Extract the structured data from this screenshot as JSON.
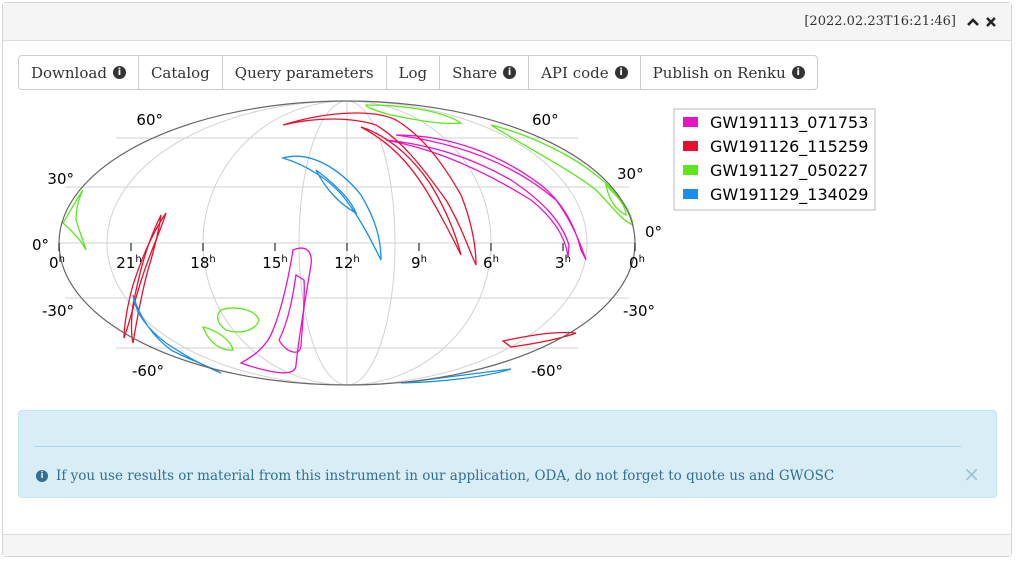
{
  "header": {
    "timestamp": "[2022.02.23T16:21:46]",
    "collapse_icon": "chevron-up-icon",
    "close_icon": "close-icon"
  },
  "toolbar": {
    "buttons": [
      {
        "label": "Download",
        "info": true
      },
      {
        "label": "Catalog",
        "info": false
      },
      {
        "label": "Query parameters",
        "info": false
      },
      {
        "label": "Log",
        "info": false
      },
      {
        "label": "Share",
        "info": true
      },
      {
        "label": "API code",
        "info": true
      },
      {
        "label": "Publish on Renku",
        "info": true
      }
    ]
  },
  "plot": {
    "projection": "mollweide",
    "ra_labels": [
      "0h",
      "21h",
      "18h",
      "15h",
      "12h",
      "9h",
      "6h",
      "3h",
      "0h"
    ],
    "dec_labels_left": [
      "60°",
      "30°",
      "0°",
      "-30°",
      "-60°"
    ],
    "dec_labels_right": [
      "60°",
      "30°",
      "0°",
      "-30°",
      "-60°"
    ],
    "legend": [
      {
        "name": "GW191113_071753",
        "color": "#e815c7"
      },
      {
        "name": "GW191126_115259",
        "color": "#e8102e"
      },
      {
        "name": "GW191127_050227",
        "color": "#5ce81a"
      },
      {
        "name": "GW191129_134029",
        "color": "#1a8ee8"
      }
    ]
  },
  "alert": {
    "text": "If you use results or material from this instrument in our application, ODA, do not forget to quote us and GWOSC",
    "icon": "info-circle-icon",
    "close": "×"
  }
}
